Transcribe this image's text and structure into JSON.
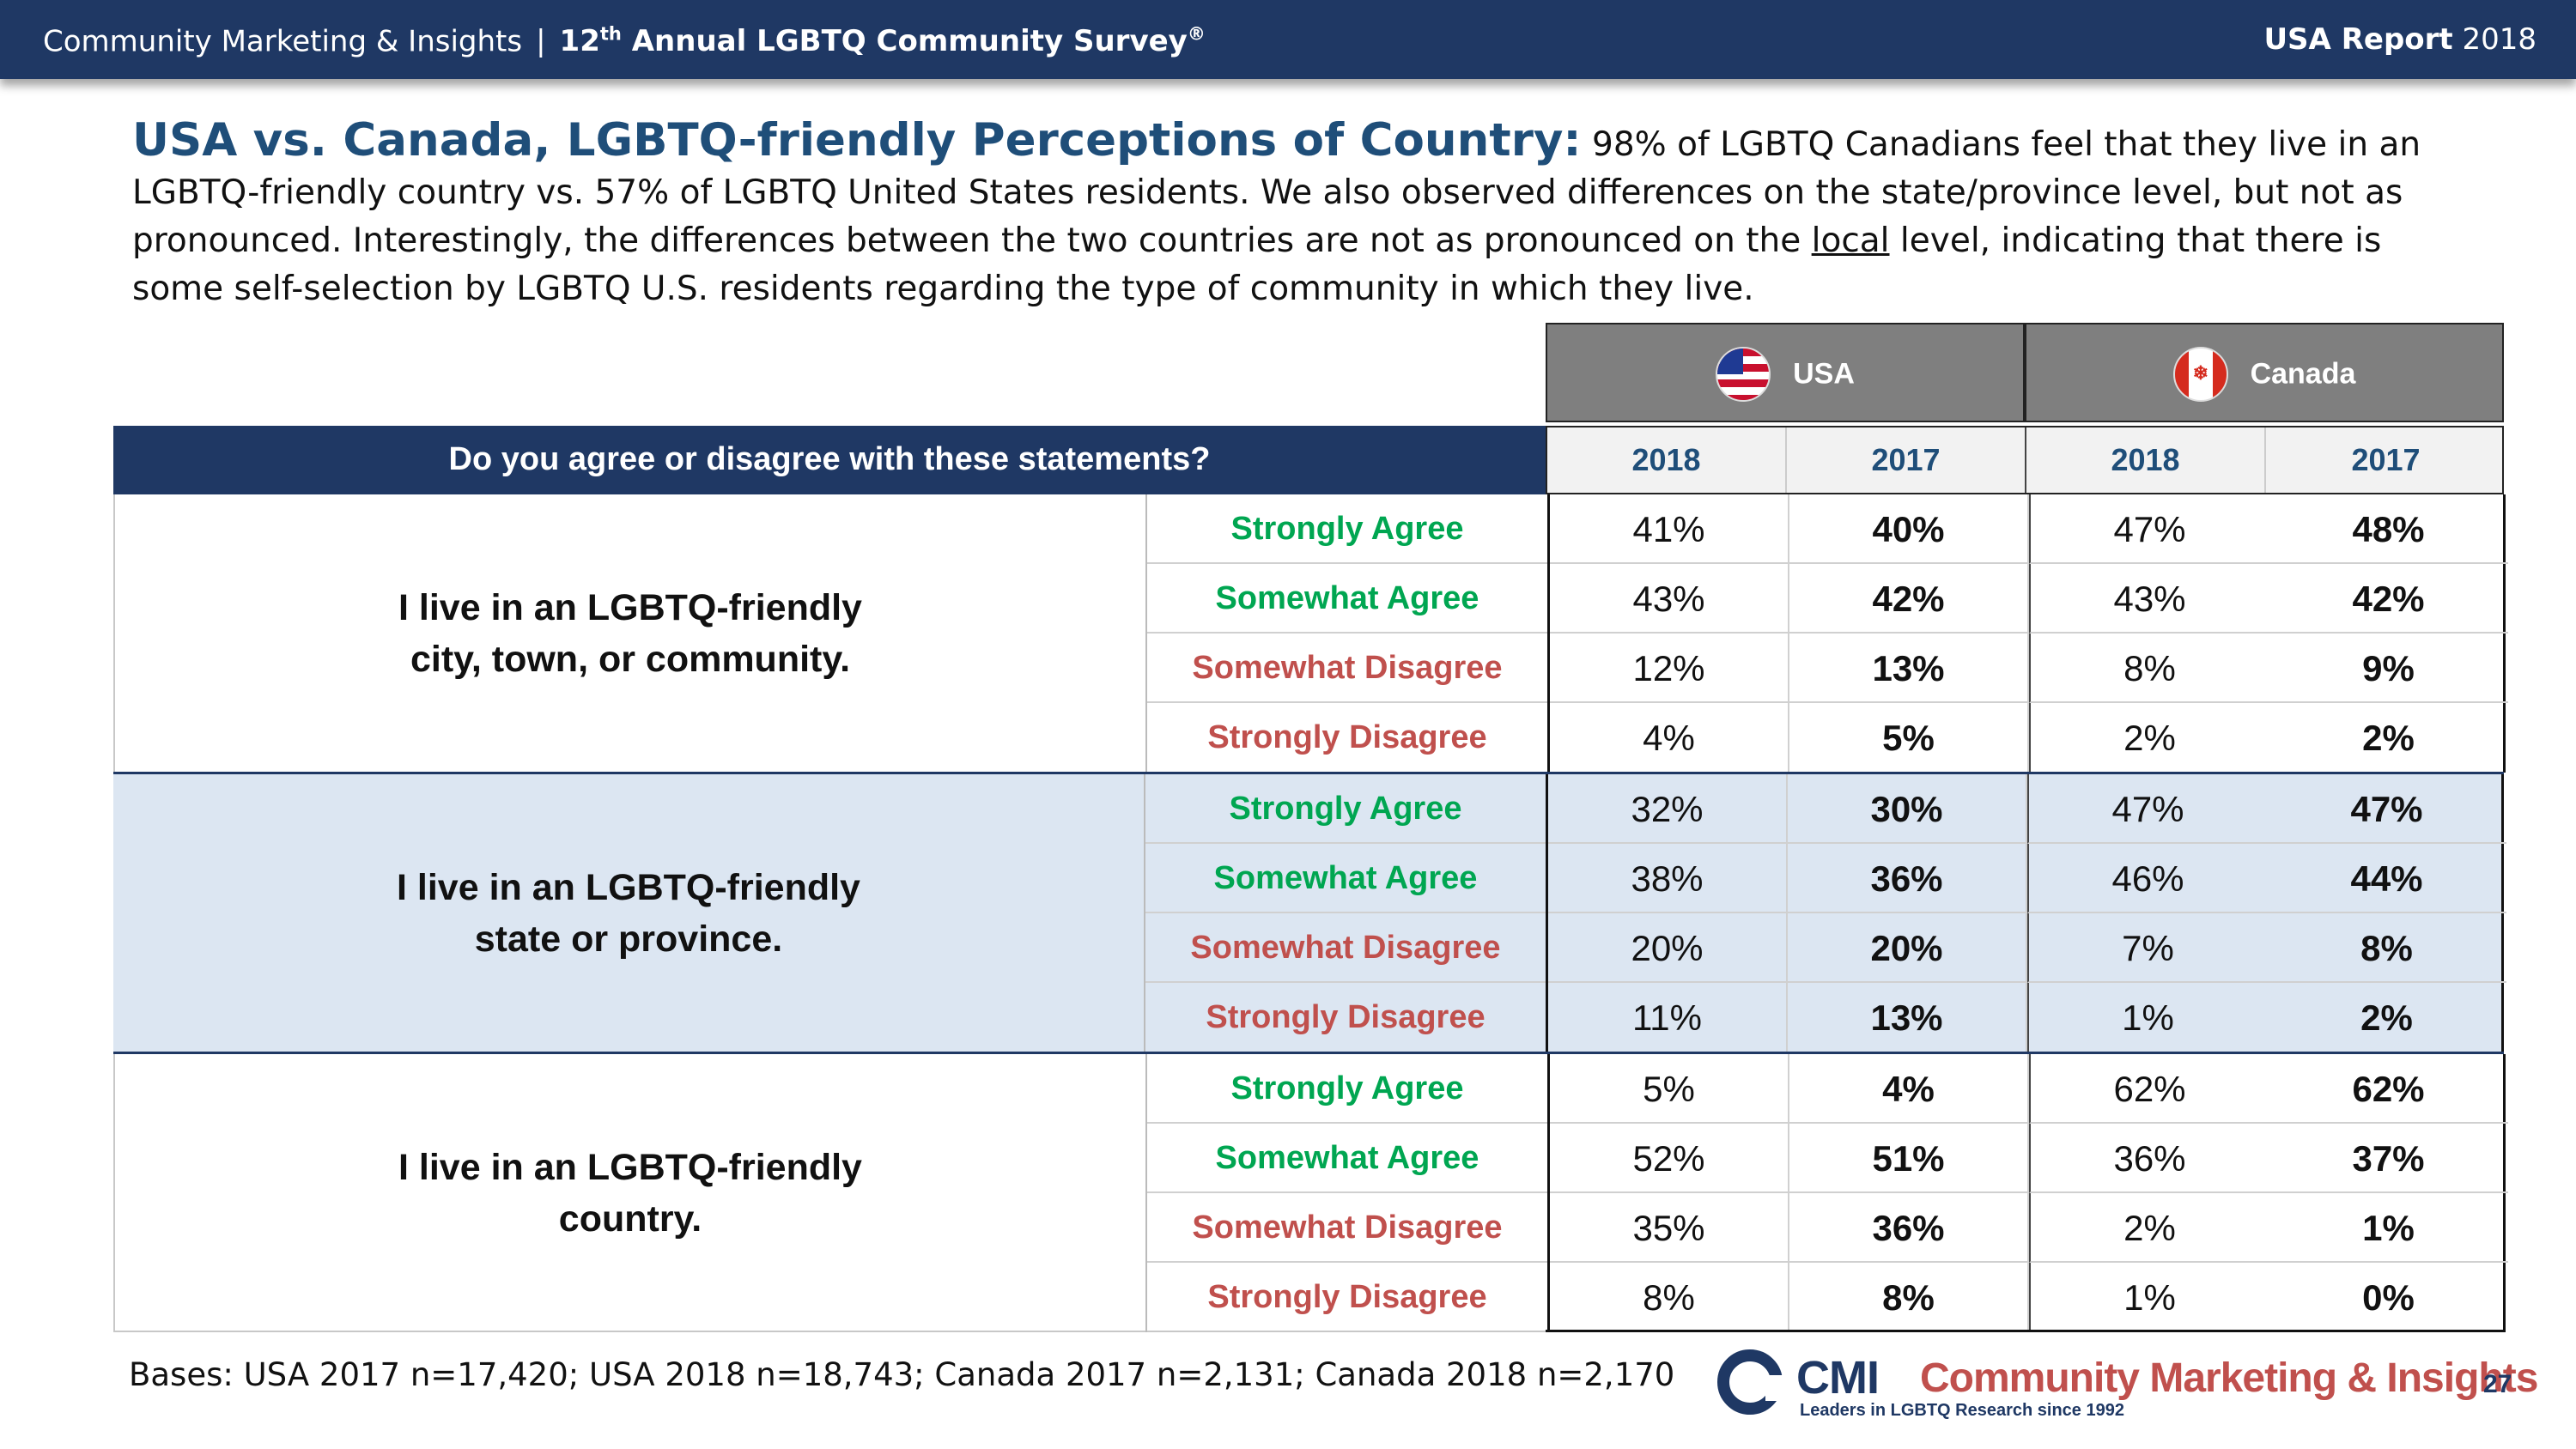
{
  "header": {
    "company": "Community Marketing & Insights",
    "separator": "|",
    "survey_prefix": "12",
    "survey_sup": "th",
    "survey_title": "Annual LGBTQ Community Survey",
    "survey_reg": "®",
    "report_label": "USA Report",
    "report_year": "2018"
  },
  "intro": {
    "headline": "USA vs. Canada, LGBTQ-friendly Perceptions of Country:",
    "text_1": "98% of LGBTQ Canadians feel that they live in an LGBTQ-friendly country vs. 57% of LGBTQ United States residents. We also observed differences on the state/province level, but not as pronounced. Interestingly, the differences between the two countries are not as pronounced on the",
    "underlined": "local",
    "text_2": "level, indicating that there is some self-selection by LGBTQ U.S. residents regarding the type of community in which they live."
  },
  "table": {
    "question": "Do you agree or disagree with these statements?",
    "countries": [
      {
        "name": "USA",
        "flag_icon": "us-flag-icon"
      },
      {
        "name": "Canada",
        "flag_icon": "canada-flag-icon"
      }
    ],
    "years": [
      "2018",
      "2017",
      "2018",
      "2017"
    ],
    "responses": [
      "Strongly Agree",
      "Somewhat Agree",
      "Somewhat Disagree",
      "Strongly Disagree"
    ],
    "statements": [
      {
        "line1": "I live in an LGBTQ-friendly",
        "line2": "city, town, or community.",
        "rows": [
          [
            "41%",
            "40%",
            "47%",
            "48%"
          ],
          [
            "43%",
            "42%",
            "43%",
            "42%"
          ],
          [
            "12%",
            "13%",
            "8%",
            "9%"
          ],
          [
            "4%",
            "5%",
            "2%",
            "2%"
          ]
        ]
      },
      {
        "line1": "I live in an LGBTQ-friendly",
        "line2": "state or province.",
        "rows": [
          [
            "32%",
            "30%",
            "47%",
            "47%"
          ],
          [
            "38%",
            "36%",
            "46%",
            "44%"
          ],
          [
            "20%",
            "20%",
            "7%",
            "8%"
          ],
          [
            "11%",
            "13%",
            "1%",
            "2%"
          ]
        ]
      },
      {
        "line1": "I live in an LGBTQ-friendly",
        "line2": "country.",
        "rows": [
          [
            "5%",
            "4%",
            "62%",
            "62%"
          ],
          [
            "52%",
            "51%",
            "36%",
            "37%"
          ],
          [
            "35%",
            "36%",
            "2%",
            "1%"
          ],
          [
            "8%",
            "8%",
            "1%",
            "0%"
          ]
        ]
      }
    ]
  },
  "footer": {
    "bases": "Bases: USA 2017 n=17,420; USA 2018 n=18,743; Canada 2017 n=2,131; Canada 2018 n=2,170",
    "logo_short": "CMI",
    "logo_name": "Community Marketing & Insights",
    "logo_tagline": "Leaders in LGBTQ Research since 1992",
    "page_number": "27"
  },
  "colors": {
    "navy": "#1f3864",
    "headline_blue": "#1f4e79",
    "agree_green": "#00a651",
    "disagree_red": "#c0504d",
    "band_blue": "#dce6f2",
    "country_gray": "#7f7f7f"
  }
}
